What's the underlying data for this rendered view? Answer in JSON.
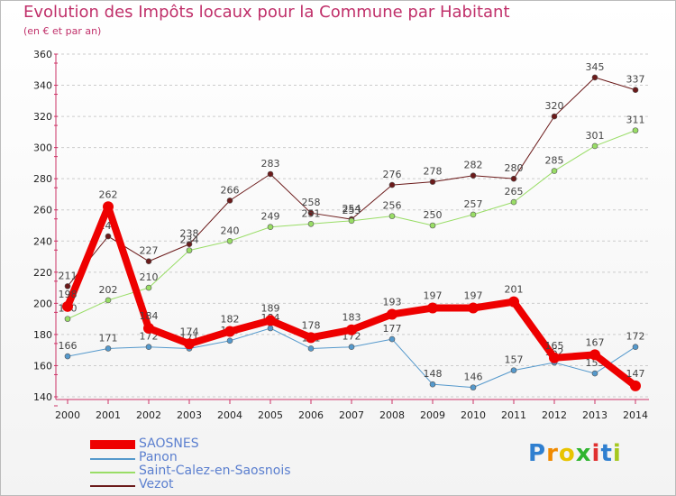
{
  "title": "Evolution des Impôts locaux pour la Commune par Habitant",
  "subtitle": "(en € et par an)",
  "logo": "Proxiti",
  "chart_data": {
    "type": "line",
    "title": "Evolution des Impôts locaux pour la Commune par Habitant",
    "subtitle": "(en € et par an)",
    "x": [
      "2000",
      "2001",
      "2002",
      "2003",
      "2004",
      "2005",
      "2006",
      "2007",
      "2008",
      "2009",
      "2010",
      "2011",
      "2012",
      "2013",
      "2014"
    ],
    "ylim": [
      140,
      360
    ],
    "yticks": [
      140,
      160,
      180,
      200,
      220,
      240,
      260,
      280,
      300,
      320,
      340,
      360
    ],
    "grid": "horizontal dashed",
    "legend": "bottom-left",
    "series": [
      {
        "name": "Vezot",
        "color": "#6b1a1a",
        "width": 1,
        "values": [
          211,
          243,
          227,
          238,
          266,
          283,
          258,
          254,
          276,
          278,
          282,
          280,
          320,
          345,
          337
        ]
      },
      {
        "name": "Saint-Calez-en-Saosnois",
        "color": "#99dd66",
        "width": 1,
        "values": [
          190,
          202,
          210,
          234,
          240,
          249,
          251,
          253,
          256,
          250,
          257,
          265,
          285,
          301,
          311
        ]
      },
      {
        "name": "Panon",
        "color": "#5599cc",
        "width": 1,
        "values": [
          166,
          171,
          172,
          171,
          176,
          184,
          171,
          172,
          177,
          148,
          146,
          157,
          162,
          155,
          172
        ]
      },
      {
        "name": "SAOSNES",
        "color": "#ee0000",
        "width": 8,
        "values": [
          198,
          262,
          184,
          174,
          182,
          189,
          178,
          183,
          193,
          197,
          197,
          201,
          165,
          167,
          147
        ]
      }
    ]
  }
}
